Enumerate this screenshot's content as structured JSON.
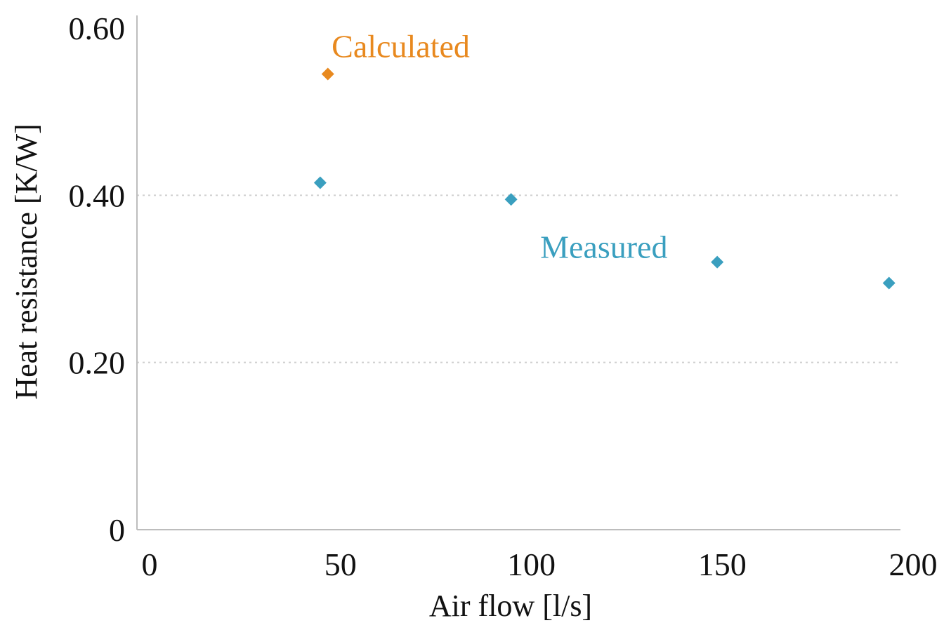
{
  "chart_data": {
    "type": "scatter",
    "title": "",
    "xlabel": "Air flow [l/s]",
    "ylabel": "Heat resistance [K/W]",
    "xlim": [
      0,
      200
    ],
    "ylim": [
      0,
      0.6
    ],
    "x_ticks": [
      {
        "value": 0,
        "label": "0"
      },
      {
        "value": 50,
        "label": "50"
      },
      {
        "value": 100,
        "label": "100"
      },
      {
        "value": 150,
        "label": "150"
      },
      {
        "value": 200,
        "label": "200"
      }
    ],
    "y_ticks": [
      {
        "value": 0,
        "label": "0"
      },
      {
        "value": 0.2,
        "label": "0.20"
      },
      {
        "value": 0.4,
        "label": "0.40"
      },
      {
        "value": 0.6,
        "label": "0.60"
      }
    ],
    "y_gridlines": [
      0.2,
      0.4
    ],
    "series": [
      {
        "name": "Calculated",
        "color": "#e8891f",
        "points": [
          {
            "x": 50,
            "y": 0.545
          }
        ]
      },
      {
        "name": "Measured",
        "color": "#3a9fbf",
        "points": [
          {
            "x": 48,
            "y": 0.415
          },
          {
            "x": 98,
            "y": 0.395
          },
          {
            "x": 152,
            "y": 0.32
          },
          {
            "x": 197,
            "y": 0.295
          }
        ]
      }
    ],
    "annotations": [
      {
        "text": "Calculated",
        "x": 51,
        "y": 0.565,
        "color": "#e8891f",
        "anchor": "start"
      },
      {
        "text": "Measured",
        "x": 139,
        "y": 0.325,
        "color": "#3a9fbf",
        "anchor": "end"
      }
    ]
  }
}
